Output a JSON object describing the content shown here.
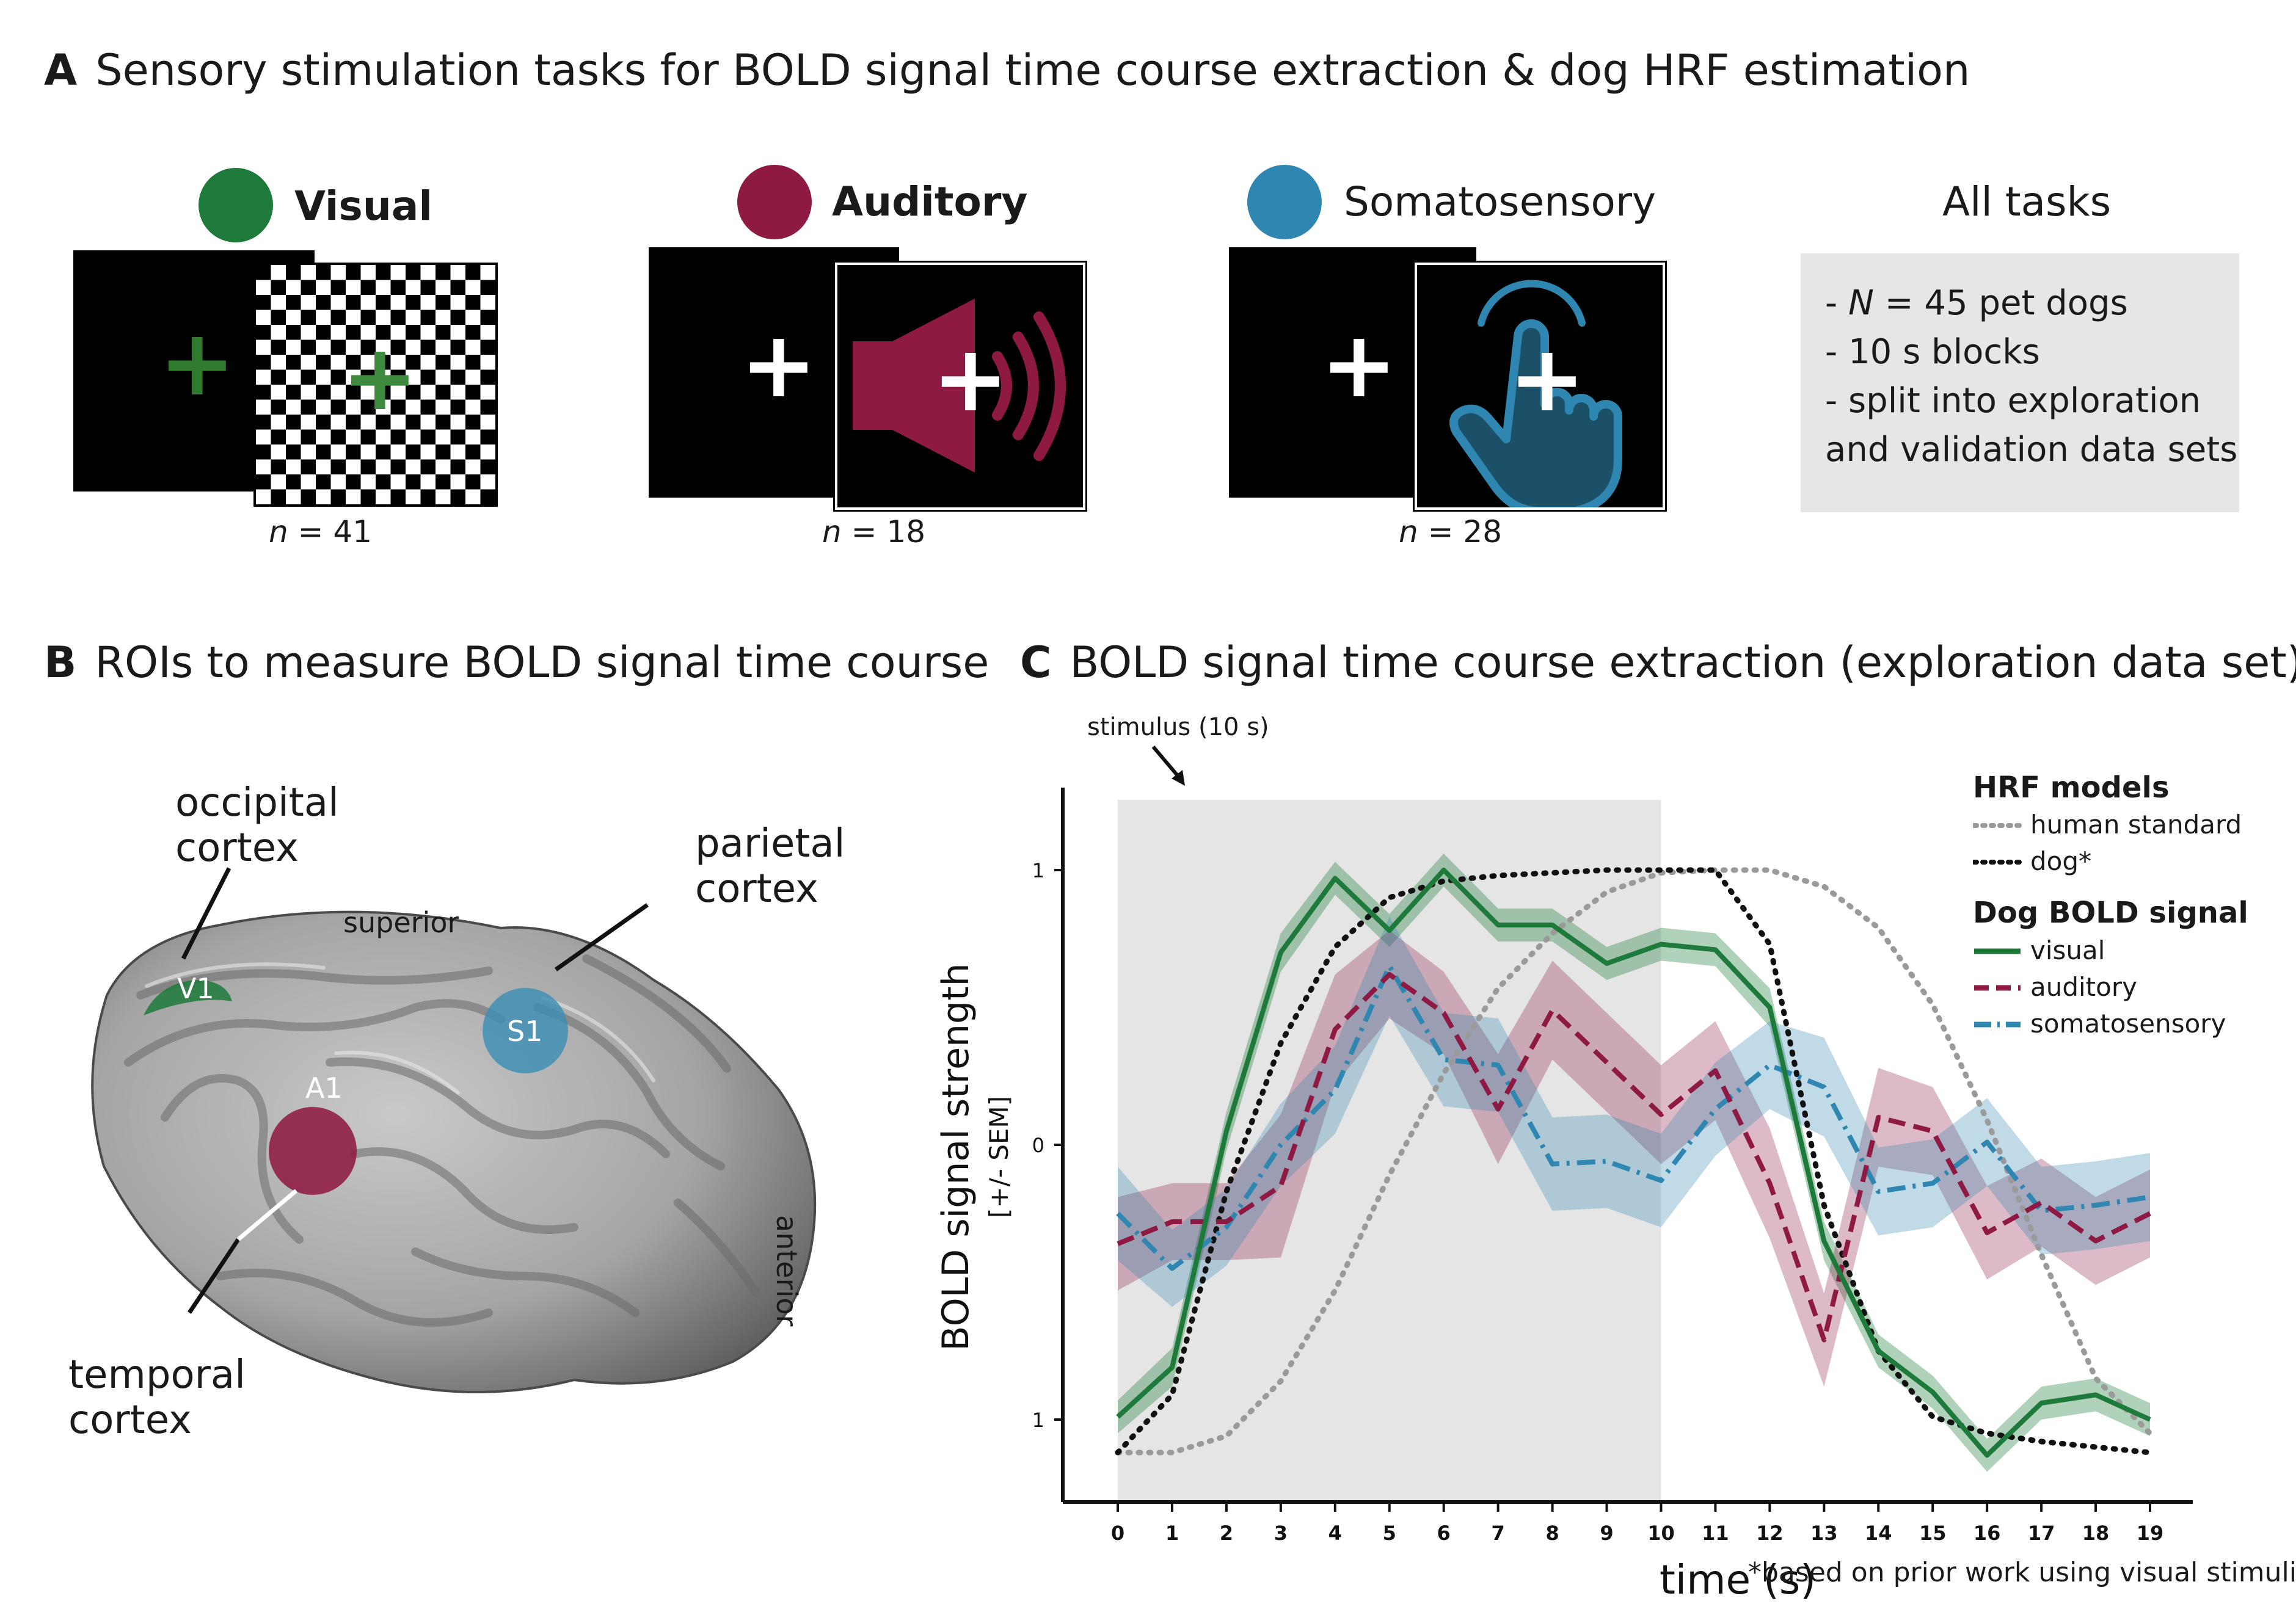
{
  "panel_a": {
    "letter": "A",
    "title": "Sensory stimulation tasks for BOLD signal time course extraction & dog HRF estimation",
    "tasks": [
      {
        "name": "Visual",
        "color": "#1e7a3a",
        "n_prefix": "n",
        "n_value": "= 41"
      },
      {
        "name": "Auditory",
        "color": "#8e1a44",
        "n_prefix": "n",
        "n_value": "= 18"
      },
      {
        "name": "Somatosensory",
        "color": "#2f86b0",
        "n_prefix": "n",
        "n_value": "= 28"
      }
    ],
    "all_tasks": {
      "title": "All tasks",
      "line1_prefix": "- ",
      "line1_italic": "N",
      "line1_rest": " = 45 pet dogs",
      "line2": "- 10 s blocks",
      "line3": "- split into exploration",
      "line4": "and validation data sets"
    }
  },
  "panel_b": {
    "letter": "B",
    "title": "ROIs to measure BOLD signal time course",
    "labels": {
      "occipital": "occipital\ncortex",
      "parietal": "parietal\ncortex",
      "temporal": "temporal\ncortex",
      "superior": "superior",
      "anterior": "anterior",
      "v1": "V1",
      "s1": "S1",
      "a1": "A1"
    },
    "colors": {
      "v1": "#1e7a3a",
      "s1": "#3a8db5",
      "a1": "#8e1a44",
      "brain": "#9a9a9a"
    }
  },
  "panel_c": {
    "letter": "C",
    "title": "BOLD signal time course extraction (exploration data set)",
    "stimulus_label": "stimulus (10 s)",
    "footnote": "*based on prior work using visual stimuli",
    "legend": {
      "models_title": "HRF models",
      "human": "human standard",
      "dog": "dog*",
      "signal_title": "Dog BOLD signal",
      "visual": "visual",
      "auditory": "auditory",
      "somatosensory": "somatosensory"
    }
  },
  "chart_data": {
    "type": "line",
    "xlabel": "time (s)",
    "ylabel": "BOLD signal strength",
    "ylabel_sub": "[+/- SEM]",
    "x": [
      0,
      1,
      2,
      3,
      4,
      5,
      6,
      7,
      8,
      9,
      10,
      11,
      12,
      13,
      14,
      15,
      16,
      17,
      18,
      19
    ],
    "xlim": [
      0,
      19
    ],
    "ylim": [
      -1.3,
      1.3
    ],
    "yticks": [
      -1,
      0,
      1
    ],
    "ytick_labels": [
      "1",
      "0",
      "1"
    ],
    "stimulus_span": [
      0,
      10
    ],
    "series": [
      {
        "name": "visual",
        "style": "solid",
        "color": "#1e7a3a",
        "values": [
          -0.99,
          -0.81,
          0.05,
          0.7,
          0.97,
          0.78,
          1.0,
          0.8,
          0.8,
          0.66,
          0.73,
          0.71,
          0.5,
          -0.35,
          -0.75,
          -0.9,
          -1.13,
          -0.94,
          -0.91,
          -1.0
        ],
        "sem": [
          0.06,
          0.07,
          0.07,
          0.07,
          0.06,
          0.06,
          0.06,
          0.06,
          0.06,
          0.06,
          0.06,
          0.06,
          0.07,
          0.07,
          0.06,
          0.06,
          0.06,
          0.06,
          0.06,
          0.06
        ]
      },
      {
        "name": "auditory",
        "style": "dashed",
        "color": "#8e1a44",
        "values": [
          -0.36,
          -0.28,
          -0.28,
          -0.15,
          0.42,
          0.62,
          0.48,
          0.13,
          0.49,
          0.3,
          0.11,
          0.27,
          -0.14,
          -0.71,
          0.1,
          0.05,
          -0.32,
          -0.21,
          -0.35,
          -0.25
        ],
        "sem": [
          0.17,
          0.14,
          0.14,
          0.26,
          0.2,
          0.16,
          0.15,
          0.2,
          0.18,
          0.18,
          0.18,
          0.18,
          0.2,
          0.17,
          0.18,
          0.16,
          0.17,
          0.16,
          0.16,
          0.16
        ]
      },
      {
        "name": "somatosensory",
        "style": "dashdot",
        "color": "#2f86b0",
        "values": [
          -0.25,
          -0.45,
          -0.3,
          0.0,
          0.2,
          0.65,
          0.31,
          0.29,
          -0.07,
          -0.06,
          -0.13,
          0.13,
          0.29,
          0.21,
          -0.17,
          -0.14,
          0.01,
          -0.24,
          -0.22,
          -0.19
        ],
        "sem": [
          0.17,
          0.14,
          0.14,
          0.15,
          0.16,
          0.18,
          0.17,
          0.17,
          0.17,
          0.17,
          0.17,
          0.17,
          0.16,
          0.18,
          0.16,
          0.16,
          0.16,
          0.16,
          0.16,
          0.16
        ]
      },
      {
        "name": "human standard",
        "style": "dotted",
        "color": "#9a9a9a",
        "values": [
          -1.12,
          -1.12,
          -1.06,
          -0.86,
          -0.53,
          -0.11,
          0.26,
          0.57,
          0.77,
          0.92,
          0.99,
          1.0,
          1.0,
          0.94,
          0.79,
          0.51,
          0.09,
          -0.4,
          -0.85,
          -1.05
        ]
      },
      {
        "name": "dog*",
        "style": "dotted",
        "color": "#111111",
        "values": [
          -1.12,
          -0.91,
          -0.17,
          0.37,
          0.72,
          0.9,
          0.96,
          0.98,
          0.99,
          1.0,
          1.0,
          1.0,
          0.73,
          -0.22,
          -0.75,
          -0.99,
          -1.05,
          -1.08,
          -1.1,
          -1.12
        ]
      }
    ]
  }
}
